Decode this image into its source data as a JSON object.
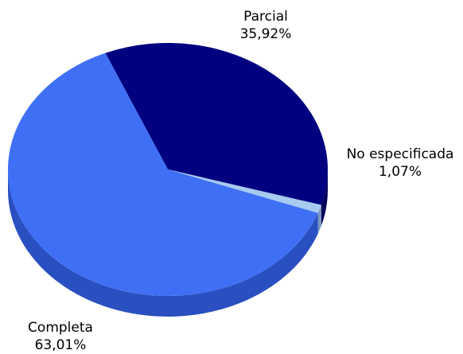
{
  "chart_data": {
    "type": "pie",
    "style": "3d",
    "slices": [
      {
        "label": "Parcial",
        "value_text": "35,92%",
        "value": 35.92,
        "color": "#000080",
        "side_color": "#00005a"
      },
      {
        "label": "No especificada",
        "value_text": "1,07%",
        "value": 1.07,
        "color": "#a6caf0",
        "side_color": "#7898c0"
      },
      {
        "label": "Completa",
        "value_text": "63,01%",
        "value": 63.01,
        "color": "#3f6ff4",
        "side_color": "#2a4fc0"
      }
    ],
    "title": "",
    "legend": "none"
  }
}
